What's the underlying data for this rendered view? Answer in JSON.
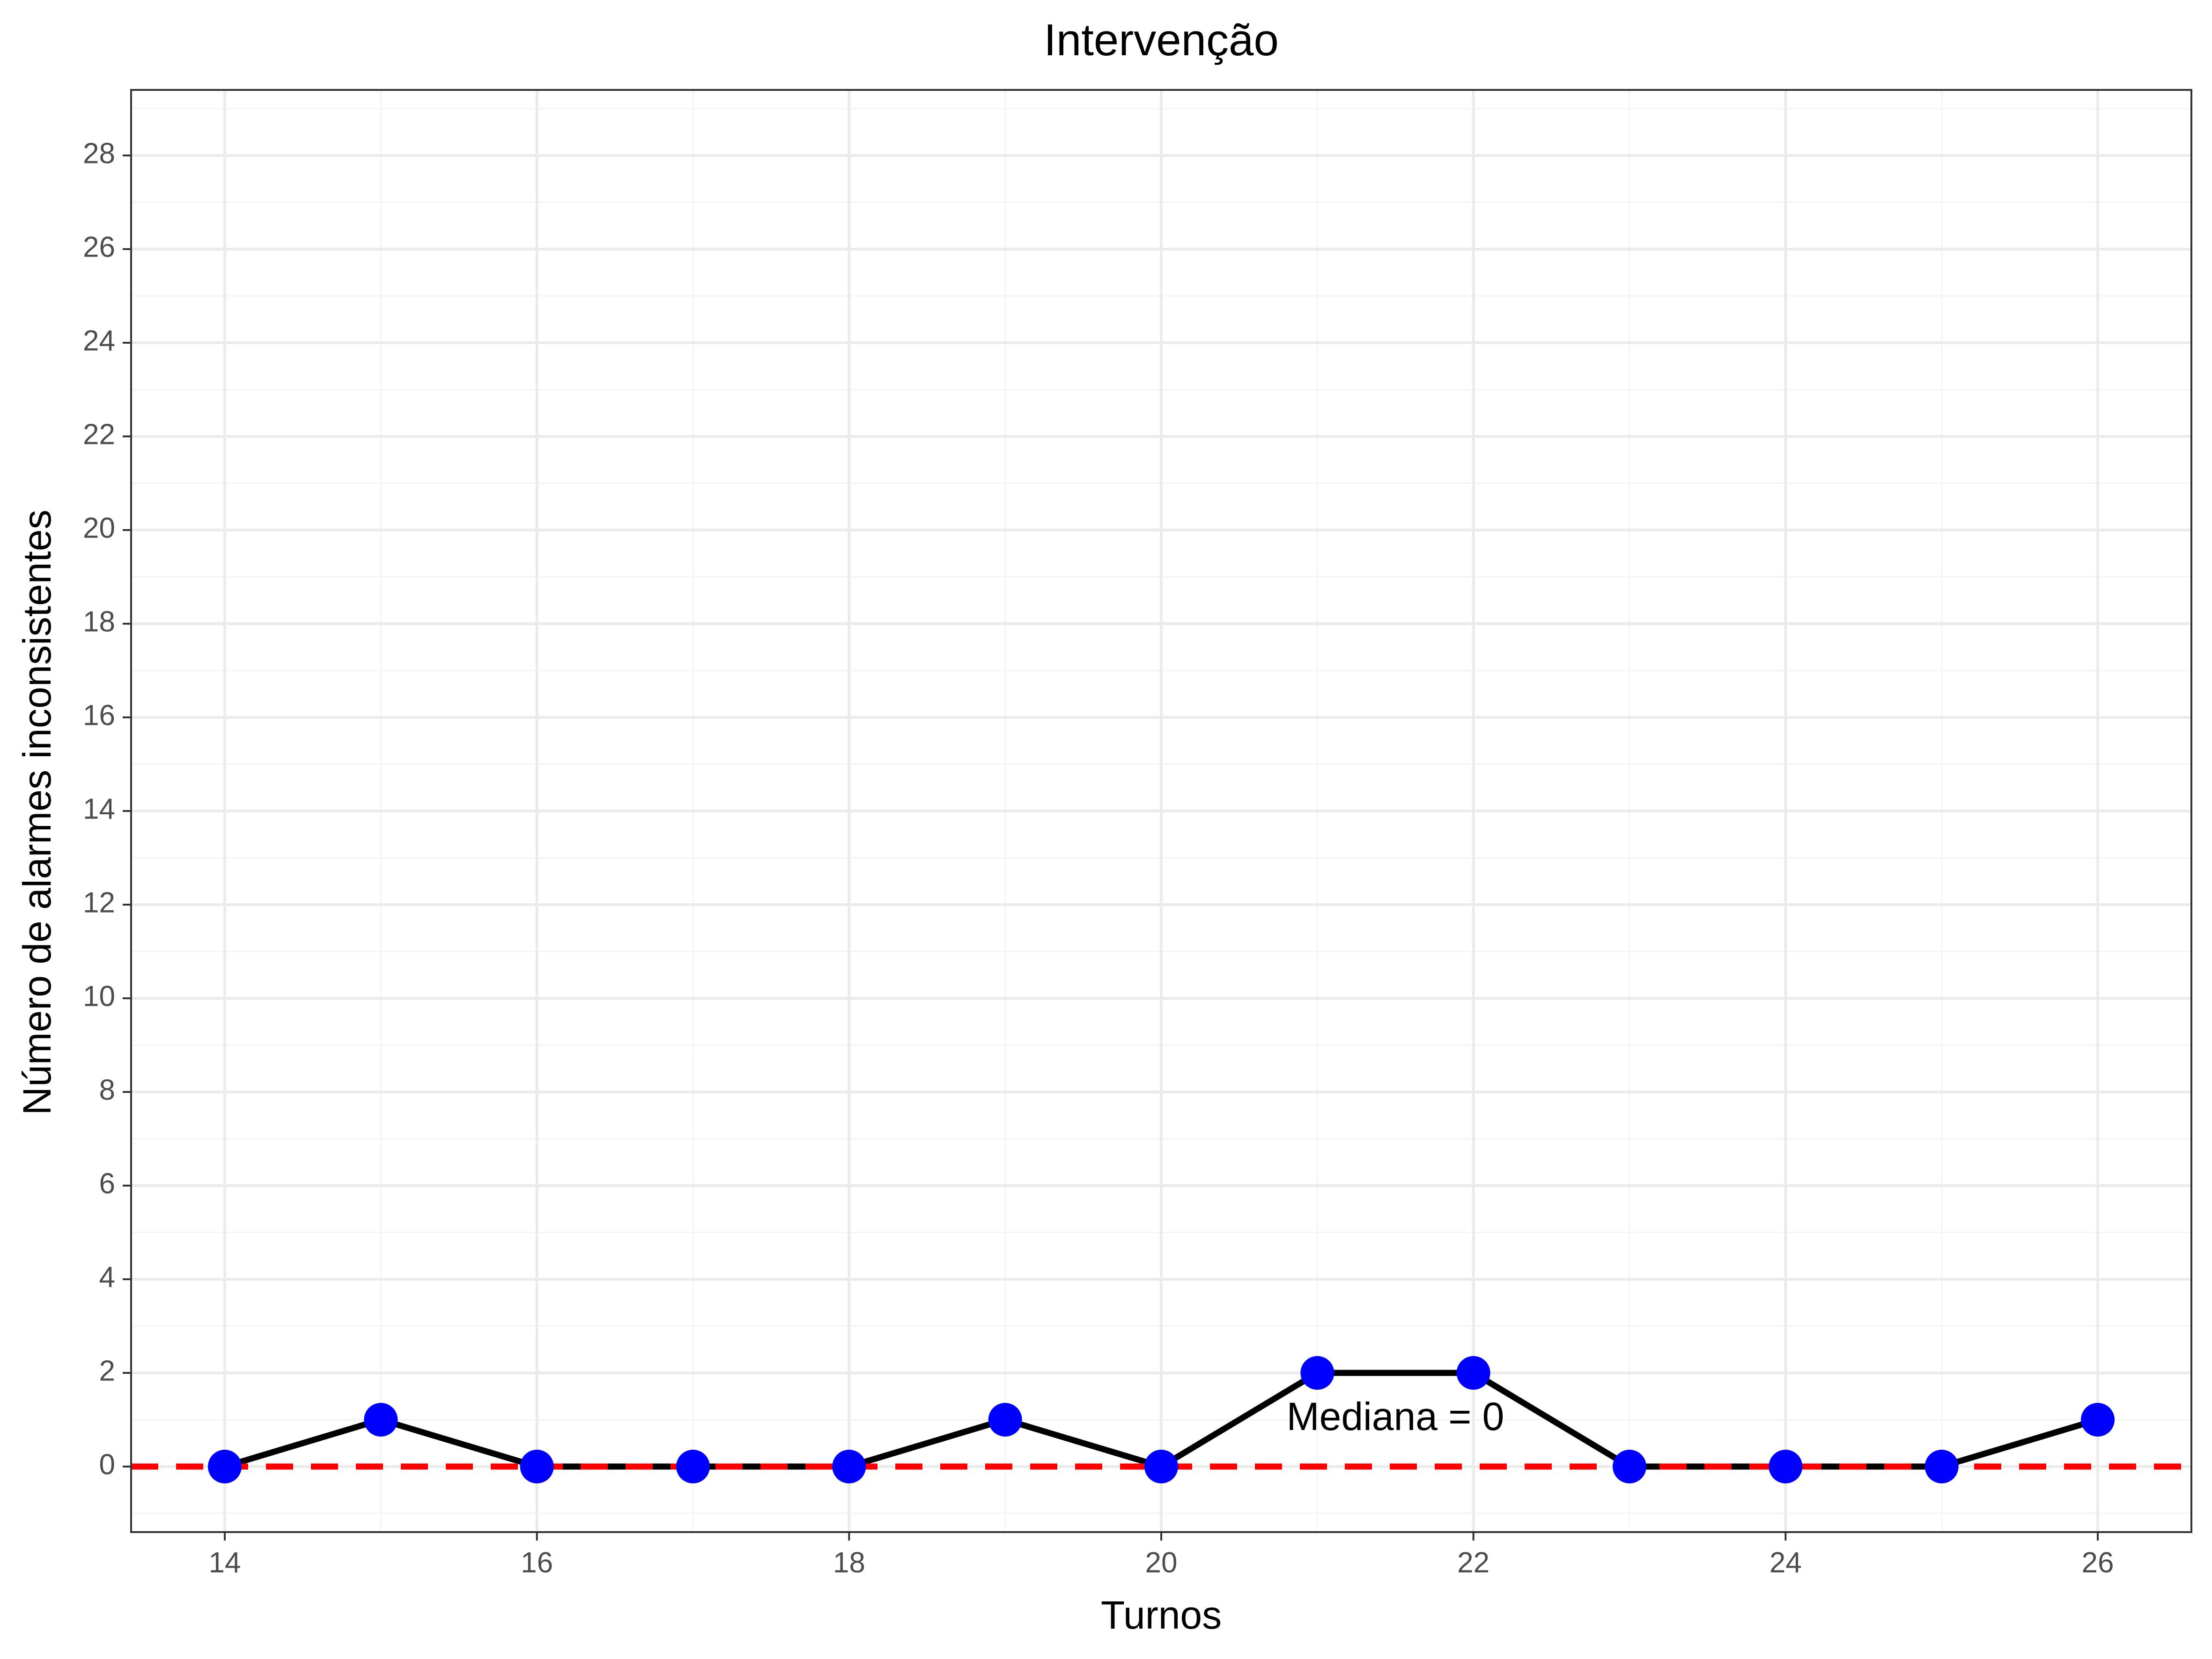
{
  "chart_data": {
    "type": "line",
    "title": "Intervenção",
    "xlabel": "Turnos",
    "ylabel": "Número de alarmes inconsistentes",
    "x": [
      14,
      15,
      16,
      17,
      18,
      19,
      20,
      21,
      22,
      23,
      24,
      25,
      26
    ],
    "series": [
      {
        "values": [
          0,
          1,
          0,
          0,
          0,
          1,
          0,
          2,
          2,
          0,
          0,
          0,
          1
        ]
      }
    ],
    "xlim": [
      13.4,
      26.6
    ],
    "ylim": [
      -1.4,
      29.4
    ],
    "x_ticks": [
      14,
      16,
      18,
      20,
      22,
      24,
      26
    ],
    "y_ticks": [
      0,
      2,
      4,
      6,
      8,
      10,
      12,
      14,
      16,
      18,
      20,
      22,
      24,
      26,
      28
    ],
    "median": {
      "value": 0,
      "label": "Mediana = 0",
      "label_x": 21.5,
      "label_y": 1
    },
    "grid": true,
    "colors": {
      "line": "#000000",
      "points": "#0000ff",
      "median": "#ff0000",
      "grid_major": "#ebebeb",
      "grid_minor": "#f4f4f4",
      "panel_border": "#333333"
    }
  }
}
